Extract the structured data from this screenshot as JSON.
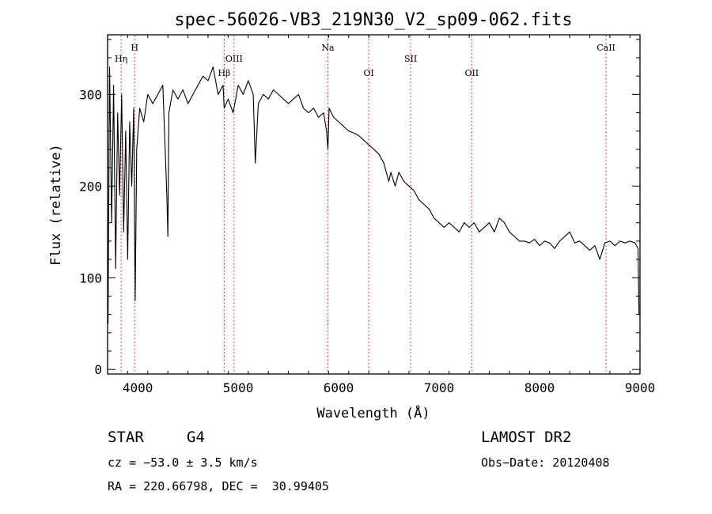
{
  "chart_data": {
    "type": "line",
    "title": "spec-56026-VB3_219N30_V2_sp09-062.fits",
    "xlabel": "Wavelength (Å)",
    "ylabel": "Flux (relative)",
    "xlim": [
      3700,
      9000
    ],
    "ylim": [
      -5,
      365
    ],
    "x_ticks": [
      4000,
      5000,
      6000,
      7000,
      8000,
      9000
    ],
    "y_ticks": [
      0,
      100,
      200,
      300
    ],
    "grid": false,
    "line_color": "#000000",
    "marker_color": "#ff0000",
    "lines": [
      {
        "label": "Hη",
        "wavelength": 3835
      },
      {
        "label": "H",
        "wavelength": 3969
      },
      {
        "label": "Hβ",
        "wavelength": 4861
      },
      {
        "label": "OIII",
        "wavelength": 4959
      },
      {
        "label": "Na",
        "wavelength": 5893
      },
      {
        "label": "OI",
        "wavelength": 6300
      },
      {
        "label": "SII",
        "wavelength": 6717
      },
      {
        "label": "OII",
        "wavelength": 7325
      },
      {
        "label": "CaII",
        "wavelength": 8662
      }
    ],
    "series": [
      {
        "x": [
          3705,
          3720,
          3740,
          3760,
          3780,
          3800,
          3820,
          3840,
          3860,
          3880,
          3900,
          3920,
          3940,
          3960,
          3975,
          3990,
          4020,
          4060,
          4100,
          4150,
          4200,
          4250,
          4290,
          4300,
          4310,
          4350,
          4400,
          4450,
          4500,
          4550,
          4600,
          4650,
          4700,
          4750,
          4800,
          4850,
          4861,
          4900,
          4950,
          5000,
          5050,
          5100,
          5150,
          5170,
          5200,
          5250,
          5300,
          5350,
          5400,
          5450,
          5500,
          5550,
          5600,
          5650,
          5700,
          5750,
          5800,
          5850,
          5880,
          5893,
          5905,
          5950,
          6000,
          6050,
          6100,
          6150,
          6200,
          6250,
          6300,
          6350,
          6400,
          6450,
          6500,
          6520,
          6563,
          6600,
          6650,
          6700,
          6750,
          6800,
          6850,
          6900,
          6950,
          7000,
          7050,
          7100,
          7150,
          7200,
          7250,
          7300,
          7350,
          7400,
          7450,
          7500,
          7550,
          7600,
          7650,
          7700,
          7750,
          7800,
          7850,
          7900,
          7950,
          8000,
          8050,
          8100,
          8150,
          8200,
          8250,
          8300,
          8350,
          8400,
          8450,
          8500,
          8550,
          8600,
          8650,
          8700,
          8750,
          8800,
          8850,
          8900,
          8950,
          8980,
          8990
        ],
        "y": [
          50,
          330,
          160,
          310,
          110,
          280,
          190,
          300,
          150,
          260,
          120,
          270,
          200,
          285,
          75,
          240,
          285,
          270,
          300,
          290,
          300,
          310,
          190,
          145,
          280,
          305,
          295,
          305,
          290,
          300,
          310,
          320,
          315,
          330,
          300,
          310,
          285,
          295,
          280,
          310,
          300,
          315,
          300,
          225,
          290,
          300,
          295,
          305,
          300,
          295,
          290,
          295,
          300,
          285,
          280,
          285,
          275,
          280,
          260,
          240,
          285,
          275,
          270,
          265,
          260,
          258,
          255,
          250,
          245,
          240,
          235,
          225,
          205,
          215,
          200,
          215,
          205,
          200,
          195,
          185,
          180,
          175,
          165,
          160,
          155,
          160,
          155,
          150,
          160,
          155,
          160,
          150,
          155,
          160,
          150,
          165,
          160,
          150,
          145,
          140,
          140,
          138,
          142,
          135,
          140,
          138,
          132,
          140,
          145,
          150,
          138,
          140,
          135,
          130,
          135,
          120,
          138,
          140,
          135,
          140,
          138,
          140,
          138,
          132,
          60
        ]
      }
    ]
  },
  "footer": {
    "object_class": "STAR",
    "subclass": "G4",
    "survey": "LAMOST DR2",
    "cz": "cz = −53.0 ± 3.5 km/s",
    "obs_date": "Obs−Date: 20120408",
    "radec": "RA = 220.66798, DEC =  30.99405"
  }
}
